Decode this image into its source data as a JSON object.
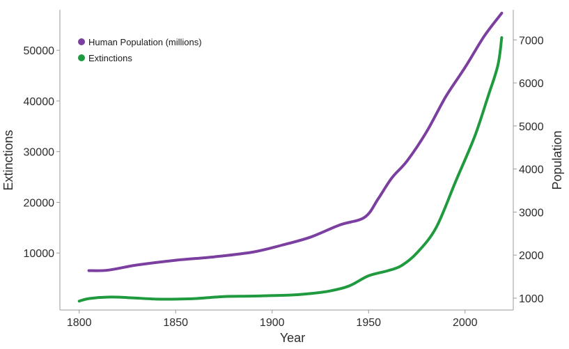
{
  "chart_data": {
    "type": "line",
    "title": "",
    "xlabel": "Year",
    "ylabel_left": "Extinctions",
    "ylabel_right": "Population",
    "xlim": [
      1790,
      2025
    ],
    "ylim_left": [
      -1250,
      58000
    ],
    "ylim_right": [
      725,
      7700
    ],
    "xticks": [
      1800,
      1850,
      1900,
      1950,
      2000
    ],
    "yticks_left": [
      10000,
      20000,
      30000,
      40000,
      50000
    ],
    "yticks_right": [
      1000,
      2000,
      3000,
      4000,
      5000,
      6000,
      7000
    ],
    "grid": false,
    "legend_position": "top-left",
    "series": [
      {
        "name": "Human Population (millions)",
        "axis": "right",
        "color": "#7b3fa0",
        "x": [
          1805,
          1815,
          1830,
          1850,
          1870,
          1890,
          1905,
          1920,
          1935,
          1948,
          1955,
          1962,
          1970,
          1980,
          1990,
          2000,
          2010,
          2019
        ],
        "values": [
          1640,
          1650,
          1770,
          1880,
          1960,
          2070,
          2230,
          2420,
          2700,
          2880,
          3310,
          3790,
          4190,
          4860,
          5680,
          6360,
          7090,
          7620
        ]
      },
      {
        "name": "Extinctions",
        "axis": "left",
        "color": "#1f9a3e",
        "x": [
          1800,
          1805,
          1815,
          1825,
          1840,
          1850,
          1860,
          1875,
          1890,
          1910,
          1920,
          1930,
          1940,
          1950,
          1960,
          1967,
          1975,
          1985,
          1995,
          2005,
          2012,
          2017,
          2019
        ],
        "values": [
          500,
          1000,
          1300,
          1200,
          900,
          900,
          1000,
          1400,
          1500,
          1700,
          2000,
          2500,
          3500,
          5500,
          6500,
          7500,
          10000,
          15000,
          24000,
          33000,
          41000,
          47000,
          52500
        ]
      }
    ]
  }
}
